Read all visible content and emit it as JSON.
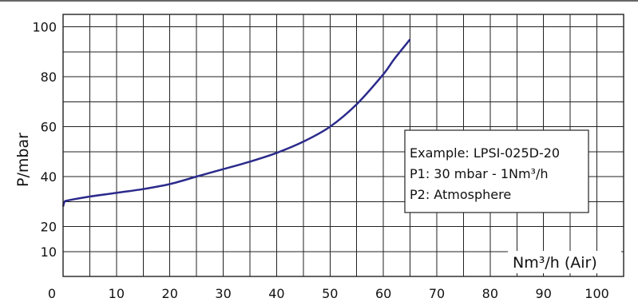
{
  "chart_data": {
    "type": "line",
    "title": "",
    "xlabel": "Nm³/h (Air)",
    "ylabel": "P/mbar",
    "xlim": [
      0,
      105
    ],
    "ylim": [
      0,
      105
    ],
    "x_ticks": [
      0,
      10,
      20,
      30,
      40,
      50,
      60,
      70,
      80,
      90,
      100
    ],
    "y_ticks": [
      10,
      20,
      40,
      60,
      80,
      100
    ],
    "grid": true,
    "line_color": "#2b2b8c",
    "series": [
      {
        "x": [
          0,
          0.3,
          1,
          5,
          10,
          15,
          20,
          25,
          30,
          35,
          40,
          45,
          50,
          55,
          60,
          62,
          65
        ],
        "y": [
          28,
          30,
          30.5,
          32,
          33.5,
          35,
          37,
          40,
          43,
          46,
          49.5,
          54,
          60,
          69,
          81,
          87,
          95
        ]
      }
    ],
    "annotation": {
      "lines": [
        "Example: LPSI-025D-20",
        "P1: 30 mbar - 1Nm³/h",
        "P2: Atmosphere"
      ]
    }
  }
}
